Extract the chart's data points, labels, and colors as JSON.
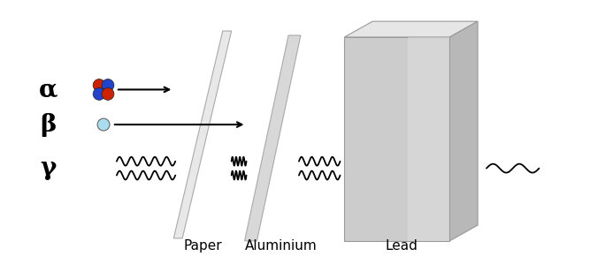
{
  "bg_color": "#ffffff",
  "greek_labels": [
    "α",
    "β",
    "γ"
  ],
  "greek_fontsize": 20,
  "barrier_labels": [
    "Paper",
    "Aluminium",
    "Lead"
  ],
  "barrier_label_fontsize": 11,
  "nucleus_red": "#cc2200",
  "nucleus_blue": "#2244cc",
  "electron_color": "#aaddee",
  "panel_face_paper": "#e8e8e8",
  "panel_face_alum": "#d8d8d8",
  "panel_edge": "#aaaaaa",
  "lead_front_color": "#d0d0d0",
  "lead_top_color": "#e8e8e8",
  "lead_right_color": "#b8b8b8",
  "lead_gradient_left": "#c0c0c0",
  "lead_gradient_right": "#e0e0e0"
}
